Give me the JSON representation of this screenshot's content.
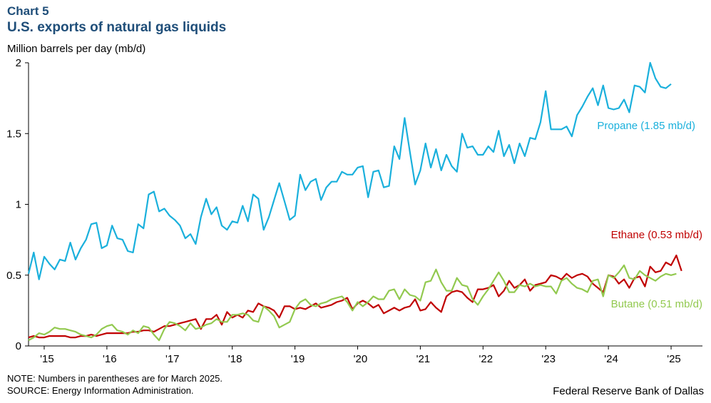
{
  "header": {
    "label": "Chart 5",
    "title": "U.S. exports of natural gas liquids",
    "y_unit": "Million barrels per day (mb/d)"
  },
  "footer": {
    "note": "NOTE: Numbers in parentheses are for March 2025.",
    "source": "SOURCE: Energy Information Administration.",
    "credit": "Federal Reserve Bank of Dallas"
  },
  "chart_data": {
    "type": "line",
    "title": "U.S. exports of natural gas liquids",
    "ylabel": "Million barrels per day (mb/d)",
    "xlabel": "",
    "ylim": [
      0,
      2
    ],
    "xlim": [
      "2014-10",
      "2025-07"
    ],
    "grid": false,
    "y_ticks": [
      {
        "value": 0,
        "label": "0"
      },
      {
        "value": 0.5,
        "label": "0.5"
      },
      {
        "value": 1,
        "label": "1"
      },
      {
        "value": 1.5,
        "label": "1.5"
      },
      {
        "value": 2,
        "label": "2"
      }
    ],
    "x_ticks": [
      {
        "year": 2015,
        "label": "'15"
      },
      {
        "year": 2016,
        "label": "'16"
      },
      {
        "year": 2017,
        "label": "'17"
      },
      {
        "year": 2018,
        "label": "'18"
      },
      {
        "year": 2019,
        "label": "'19"
      },
      {
        "year": 2020,
        "label": "'20"
      },
      {
        "year": 2021,
        "label": "'21"
      },
      {
        "year": 2022,
        "label": "'22"
      },
      {
        "year": 2023,
        "label": "'23"
      },
      {
        "year": 2024,
        "label": "'24"
      },
      {
        "year": 2025,
        "label": "'25"
      }
    ],
    "start_month": "2014-10",
    "series": [
      {
        "name": "Propane",
        "label": "Propane (1.85 mb/d)",
        "color": "#1ab0dc",
        "values": [
          0.51,
          0.66,
          0.47,
          0.63,
          0.58,
          0.54,
          0.61,
          0.6,
          0.73,
          0.61,
          0.69,
          0.75,
          0.86,
          0.87,
          0.69,
          0.71,
          0.85,
          0.76,
          0.75,
          0.67,
          0.66,
          0.86,
          0.83,
          1.07,
          1.09,
          0.95,
          0.97,
          0.92,
          0.89,
          0.85,
          0.76,
          0.79,
          0.72,
          0.91,
          1.04,
          0.93,
          0.98,
          0.85,
          0.82,
          0.88,
          0.87,
          0.99,
          0.88,
          1.07,
          1.04,
          0.82,
          0.91,
          1.03,
          1.15,
          1.02,
          0.89,
          0.92,
          1.21,
          1.1,
          1.16,
          1.18,
          1.03,
          1.12,
          1.16,
          1.16,
          1.23,
          1.21,
          1.21,
          1.26,
          1.27,
          1.05,
          1.23,
          1.24,
          1.12,
          1.13,
          1.41,
          1.32,
          1.61,
          1.37,
          1.14,
          1.24,
          1.43,
          1.26,
          1.39,
          1.24,
          1.35,
          1.27,
          1.23,
          1.5,
          1.4,
          1.41,
          1.35,
          1.35,
          1.41,
          1.37,
          1.52,
          1.34,
          1.42,
          1.29,
          1.43,
          1.34,
          1.47,
          1.46,
          1.58,
          1.8,
          1.53,
          1.53,
          1.53,
          1.55,
          1.48,
          1.63,
          1.69,
          1.76,
          1.82,
          1.7,
          1.84,
          1.68,
          1.67,
          1.68,
          1.74,
          1.65,
          1.84,
          1.83,
          1.79,
          2.0,
          1.89,
          1.83,
          1.82,
          1.85
        ]
      },
      {
        "name": "Ethane",
        "label": "Ethane (0.53 mb/d)",
        "color": "#c00000",
        "values": [
          0.06,
          0.07,
          0.06,
          0.06,
          0.07,
          0.07,
          0.07,
          0.07,
          0.06,
          0.06,
          0.07,
          0.07,
          0.08,
          0.07,
          0.08,
          0.09,
          0.09,
          0.09,
          0.09,
          0.09,
          0.1,
          0.1,
          0.11,
          0.11,
          0.1,
          0.12,
          0.14,
          0.14,
          0.15,
          0.16,
          0.17,
          0.18,
          0.19,
          0.12,
          0.19,
          0.19,
          0.22,
          0.15,
          0.24,
          0.2,
          0.22,
          0.2,
          0.25,
          0.24,
          0.3,
          0.28,
          0.27,
          0.25,
          0.2,
          0.28,
          0.28,
          0.26,
          0.27,
          0.26,
          0.28,
          0.3,
          0.27,
          0.28,
          0.29,
          0.31,
          0.32,
          0.34,
          0.26,
          0.3,
          0.32,
          0.3,
          0.27,
          0.29,
          0.23,
          0.25,
          0.27,
          0.25,
          0.27,
          0.28,
          0.33,
          0.25,
          0.26,
          0.31,
          0.27,
          0.24,
          0.35,
          0.38,
          0.39,
          0.38,
          0.34,
          0.31,
          0.4,
          0.4,
          0.41,
          0.43,
          0.35,
          0.39,
          0.46,
          0.41,
          0.43,
          0.47,
          0.39,
          0.43,
          0.44,
          0.45,
          0.5,
          0.49,
          0.47,
          0.51,
          0.48,
          0.5,
          0.51,
          0.49,
          0.44,
          0.41,
          0.38,
          0.5,
          0.49,
          0.44,
          0.47,
          0.41,
          0.48,
          0.49,
          0.42,
          0.56,
          0.52,
          0.53,
          0.59,
          0.57,
          0.64,
          0.53
        ]
      },
      {
        "name": "Butane",
        "label": "Butane (0.51 mb/d)",
        "color": "#92c94f",
        "values": [
          0.04,
          0.06,
          0.09,
          0.08,
          0.1,
          0.13,
          0.12,
          0.12,
          0.11,
          0.1,
          0.08,
          0.07,
          0.06,
          0.08,
          0.12,
          0.14,
          0.15,
          0.11,
          0.1,
          0.08,
          0.11,
          0.09,
          0.14,
          0.13,
          0.08,
          0.04,
          0.12,
          0.17,
          0.16,
          0.14,
          0.11,
          0.16,
          0.12,
          0.13,
          0.15,
          0.16,
          0.19,
          0.17,
          0.17,
          0.22,
          0.22,
          0.23,
          0.22,
          0.18,
          0.17,
          0.28,
          0.25,
          0.21,
          0.13,
          0.15,
          0.17,
          0.26,
          0.31,
          0.33,
          0.29,
          0.28,
          0.3,
          0.31,
          0.33,
          0.34,
          0.35,
          0.31,
          0.25,
          0.31,
          0.28,
          0.31,
          0.35,
          0.33,
          0.33,
          0.39,
          0.4,
          0.33,
          0.4,
          0.36,
          0.35,
          0.32,
          0.45,
          0.46,
          0.54,
          0.45,
          0.39,
          0.39,
          0.48,
          0.43,
          0.42,
          0.33,
          0.29,
          0.35,
          0.4,
          0.46,
          0.52,
          0.46,
          0.38,
          0.38,
          0.43,
          0.42,
          0.44,
          0.42,
          0.43,
          0.42,
          0.42,
          0.37,
          0.46,
          0.48,
          0.44,
          0.41,
          0.4,
          0.38,
          0.46,
          0.47,
          0.35,
          0.5,
          0.48,
          0.52,
          0.57,
          0.48,
          0.47,
          0.53,
          0.5,
          0.48,
          0.46,
          0.49,
          0.51,
          0.5,
          0.51
        ]
      }
    ]
  }
}
